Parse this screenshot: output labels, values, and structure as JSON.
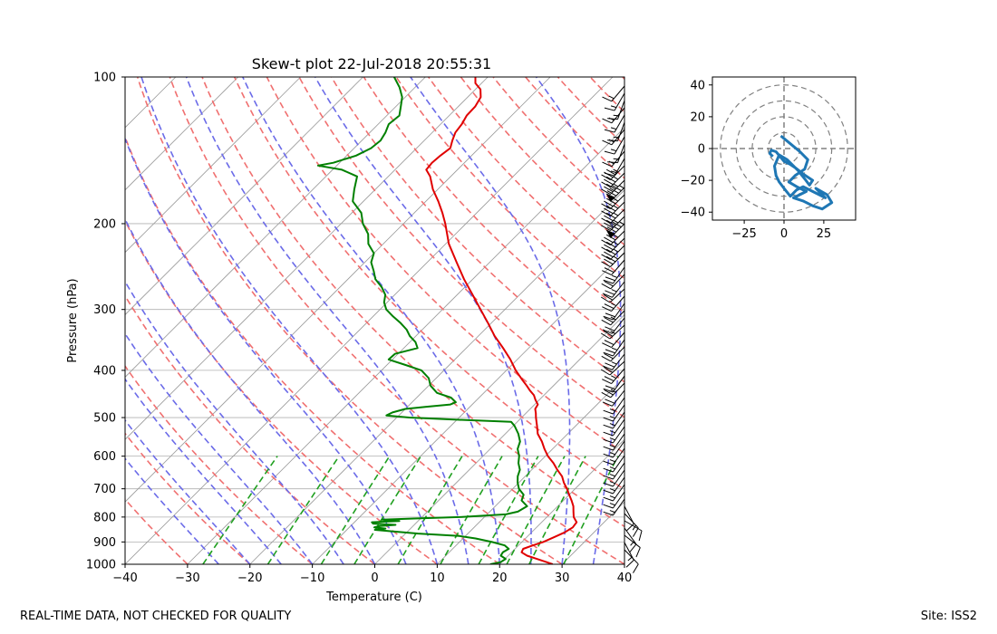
{
  "chart_data": [
    {
      "type": "skew-t",
      "title": "Skew-t plot 22-Jul-2018 20:55:31",
      "xlabel": "Temperature (C)",
      "ylabel": "Pressure (hPa)",
      "xlim": [
        -40,
        40
      ],
      "ylim": [
        1000,
        100
      ],
      "log_y": true,
      "x_ticks": [
        "−40",
        "−30",
        "−20",
        "−10",
        "0",
        "10",
        "20",
        "30",
        "40"
      ],
      "y_ticks": [
        "100",
        "200",
        "300",
        "400",
        "500",
        "600",
        "700",
        "800",
        "900",
        "1000"
      ],
      "grid": true,
      "colors": {
        "temperature": "#e00000",
        "dewpoint": "#008000",
        "dry_adiabats": "#f07070",
        "moist_adiabats": "#6b6be8",
        "mixing_ratio": "#20a020",
        "isotherms": "#999999",
        "barbs": "#000000"
      },
      "temperature_profile": [
        [
          1000,
          28.5
        ],
        [
          990,
          27.2
        ],
        [
          975,
          25.1
        ],
        [
          960,
          23.0
        ],
        [
          945,
          21.6
        ],
        [
          930,
          21.3
        ],
        [
          915,
          22.3
        ],
        [
          900,
          23.4
        ],
        [
          880,
          24.4
        ],
        [
          860,
          25.3
        ],
        [
          840,
          25.8
        ],
        [
          820,
          25.6
        ],
        [
          800,
          24.3
        ],
        [
          780,
          23.4
        ],
        [
          760,
          22.5
        ],
        [
          740,
          21.3
        ],
        [
          720,
          20.0
        ],
        [
          700,
          18.7
        ],
        [
          680,
          17.2
        ],
        [
          660,
          15.9
        ],
        [
          640,
          14.1
        ],
        [
          620,
          12.4
        ],
        [
          600,
          10.4
        ],
        [
          580,
          8.7
        ],
        [
          560,
          7.1
        ],
        [
          540,
          5.2
        ],
        [
          520,
          3.8
        ],
        [
          500,
          2.3
        ],
        [
          490,
          1.6
        ],
        [
          480,
          0.8
        ],
        [
          470,
          0.5
        ],
        [
          460,
          -0.6
        ],
        [
          450,
          -1.6
        ],
        [
          440,
          -3.0
        ],
        [
          430,
          -4.3
        ],
        [
          420,
          -5.7
        ],
        [
          400,
          -8.5
        ],
        [
          380,
          -11.1
        ],
        [
          360,
          -14.1
        ],
        [
          340,
          -17.4
        ],
        [
          320,
          -20.5
        ],
        [
          300,
          -23.9
        ],
        [
          280,
          -27.5
        ],
        [
          260,
          -31.4
        ],
        [
          240,
          -35.3
        ],
        [
          220,
          -39.5
        ],
        [
          200,
          -43.3
        ],
        [
          190,
          -45.5
        ],
        [
          180,
          -48.0
        ],
        [
          170,
          -50.8
        ],
        [
          160,
          -53.3
        ],
        [
          155,
          -55.0
        ],
        [
          150,
          -55.2
        ],
        [
          145,
          -55.0
        ],
        [
          140,
          -54.6
        ],
        [
          135,
          -55.5
        ],
        [
          130,
          -56.3
        ],
        [
          125,
          -56.6
        ],
        [
          120,
          -57.2
        ],
        [
          115,
          -57.3
        ],
        [
          110,
          -57.9
        ],
        [
          106,
          -59.2
        ],
        [
          103,
          -61.0
        ],
        [
          100,
          -62.0
        ]
      ],
      "dewpoint_profile": [
        [
          1000,
          18.5
        ],
        [
          990,
          19.8
        ],
        [
          975,
          20.1
        ],
        [
          960,
          18.8
        ],
        [
          945,
          18.6
        ],
        [
          930,
          19.0
        ],
        [
          915,
          17.8
        ],
        [
          900,
          15.2
        ],
        [
          885,
          12.0
        ],
        [
          875,
          9.0
        ],
        [
          865,
          2.0
        ],
        [
          855,
          -3.0
        ],
        [
          850,
          -5.5
        ],
        [
          845,
          -4.0
        ],
        [
          840,
          -6.0
        ],
        [
          835,
          -5.5
        ],
        [
          830,
          -3.0
        ],
        [
          825,
          -6.8
        ],
        [
          820,
          -7.2
        ],
        [
          815,
          -3.0
        ],
        [
          810,
          -6.0
        ],
        [
          805,
          0.0
        ],
        [
          800,
          6.0
        ],
        [
          790,
          13.0
        ],
        [
          780,
          14.5
        ],
        [
          760,
          15.1
        ],
        [
          740,
          13.3
        ],
        [
          720,
          12.7
        ],
        [
          700,
          11.0
        ],
        [
          680,
          9.8
        ],
        [
          660,
          8.8
        ],
        [
          640,
          8.1
        ],
        [
          620,
          6.8
        ],
        [
          600,
          5.8
        ],
        [
          580,
          4.4
        ],
        [
          560,
          3.6
        ],
        [
          540,
          2.1
        ],
        [
          520,
          0.2
        ],
        [
          510,
          -1.0
        ],
        [
          505,
          -10.0
        ],
        [
          500,
          -18.0
        ],
        [
          495,
          -22.0
        ],
        [
          488,
          -21.5
        ],
        [
          480,
          -20.0
        ],
        [
          475,
          -17.0
        ],
        [
          470,
          -13.5
        ],
        [
          465,
          -13.0
        ],
        [
          455,
          -14.5
        ],
        [
          445,
          -17.5
        ],
        [
          430,
          -19.7
        ],
        [
          415,
          -21.2
        ],
        [
          400,
          -23.6
        ],
        [
          390,
          -27.0
        ],
        [
          380,
          -30.6
        ],
        [
          370,
          -30.5
        ],
        [
          360,
          -27.8
        ],
        [
          350,
          -29.1
        ],
        [
          340,
          -31.0
        ],
        [
          330,
          -32.5
        ],
        [
          320,
          -34.5
        ],
        [
          310,
          -36.8
        ],
        [
          300,
          -39.0
        ],
        [
          290,
          -40.5
        ],
        [
          280,
          -41.5
        ],
        [
          270,
          -43.3
        ],
        [
          260,
          -45.6
        ],
        [
          250,
          -47.2
        ],
        [
          240,
          -49.0
        ],
        [
          230,
          -50.0
        ],
        [
          220,
          -52.4
        ],
        [
          210,
          -54.0
        ],
        [
          200,
          -56.5
        ],
        [
          190,
          -58.5
        ],
        [
          180,
          -61.7
        ],
        [
          170,
          -63.4
        ],
        [
          160,
          -65.0
        ],
        [
          155,
          -68.5
        ],
        [
          152,
          -73.0
        ],
        [
          150,
          -71.0
        ],
        [
          145,
          -68.5
        ],
        [
          140,
          -67.3
        ],
        [
          135,
          -67.0
        ],
        [
          130,
          -67.5
        ],
        [
          125,
          -68.3
        ],
        [
          120,
          -68.0
        ],
        [
          115,
          -69.2
        ],
        [
          110,
          -70.5
        ],
        [
          105,
          -72.5
        ],
        [
          100,
          -75.0
        ]
      ]
    },
    {
      "type": "hodograph",
      "xlim": [
        -45,
        45
      ],
      "ylim": [
        -45,
        45
      ],
      "x_ticks": [
        "−25",
        "0",
        "25"
      ],
      "y_ticks": [
        "40",
        "20",
        "0",
        "−20",
        "−40"
      ],
      "rings": [
        10,
        20,
        30,
        40
      ],
      "line_color": "#1f77b4",
      "u": [
        -2,
        4,
        10,
        15,
        13,
        7,
        3,
        8,
        14,
        10,
        6,
        12,
        18,
        24,
        30,
        27,
        20,
        26,
        18,
        12,
        8,
        4,
        0,
        -3,
        -5,
        -6,
        -3,
        2,
        6,
        9,
        13,
        16,
        18,
        12,
        7,
        4,
        0,
        -5,
        -8,
        -9,
        -7
      ],
      "v": [
        8,
        3,
        -2,
        -7,
        -13,
        -17,
        -21,
        -24,
        -27,
        -29,
        -31,
        -33,
        -36,
        -38,
        -34,
        -29,
        -25,
        -31,
        -27,
        -24,
        -26,
        -30,
        -25,
        -21,
        -17,
        -11,
        -4,
        -7,
        -11,
        -14,
        -19,
        -23,
        -20,
        -16,
        -12,
        -10,
        -8,
        -2,
        -1,
        -3,
        -5
      ]
    }
  ],
  "footer": {
    "left": "REAL-TIME DATA, NOT CHECKED FOR QUALITY",
    "right": "Site: ISS2"
  }
}
